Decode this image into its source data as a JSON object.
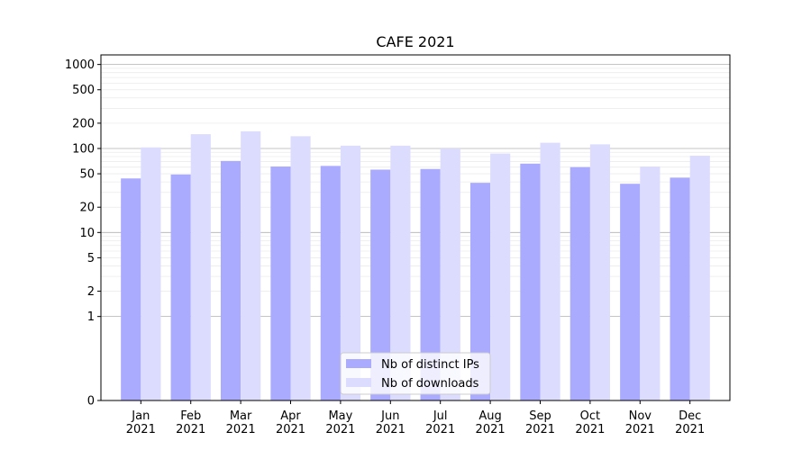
{
  "chart_data": {
    "type": "bar",
    "title": "CAFE 2021",
    "xlabel": "",
    "ylabel": "",
    "y_scale": "symlog",
    "ylim": [
      0,
      1300
    ],
    "y_ticks": [
      0,
      1,
      2,
      5,
      10,
      20,
      50,
      100,
      200,
      500,
      1000
    ],
    "y_tick_labels": [
      "0",
      "1",
      "2",
      "5",
      "10",
      "20",
      "50",
      "100",
      "200",
      "500",
      "1000"
    ],
    "grid": true,
    "legend_position": "bottom-center",
    "categories": [
      "Jan\n2021",
      "Feb\n2021",
      "Mar\n2021",
      "Apr\n2021",
      "May\n2021",
      "Jun\n2021",
      "Jul\n2021",
      "Aug\n2021",
      "Sep\n2021",
      "Oct\n2021",
      "Nov\n2021",
      "Dec\n2021"
    ],
    "category_lines": [
      [
        "Jan",
        "2021"
      ],
      [
        "Feb",
        "2021"
      ],
      [
        "Mar",
        "2021"
      ],
      [
        "Apr",
        "2021"
      ],
      [
        "May",
        "2021"
      ],
      [
        "Jun",
        "2021"
      ],
      [
        "Jul",
        "2021"
      ],
      [
        "Aug",
        "2021"
      ],
      [
        "Sep",
        "2021"
      ],
      [
        "Oct",
        "2021"
      ],
      [
        "Nov",
        "2021"
      ],
      [
        "Dec",
        "2021"
      ]
    ],
    "series": [
      {
        "name": "Nb of distinct IPs",
        "color": "#aaaaff",
        "values": [
          44,
          49,
          71,
          61,
          62,
          56,
          57,
          39,
          66,
          60,
          38,
          45
        ]
      },
      {
        "name": "Nb of downloads",
        "color": "#dcdcff",
        "values": [
          103,
          148,
          160,
          140,
          108,
          108,
          100,
          87,
          117,
          112,
          61,
          82
        ]
      }
    ]
  }
}
